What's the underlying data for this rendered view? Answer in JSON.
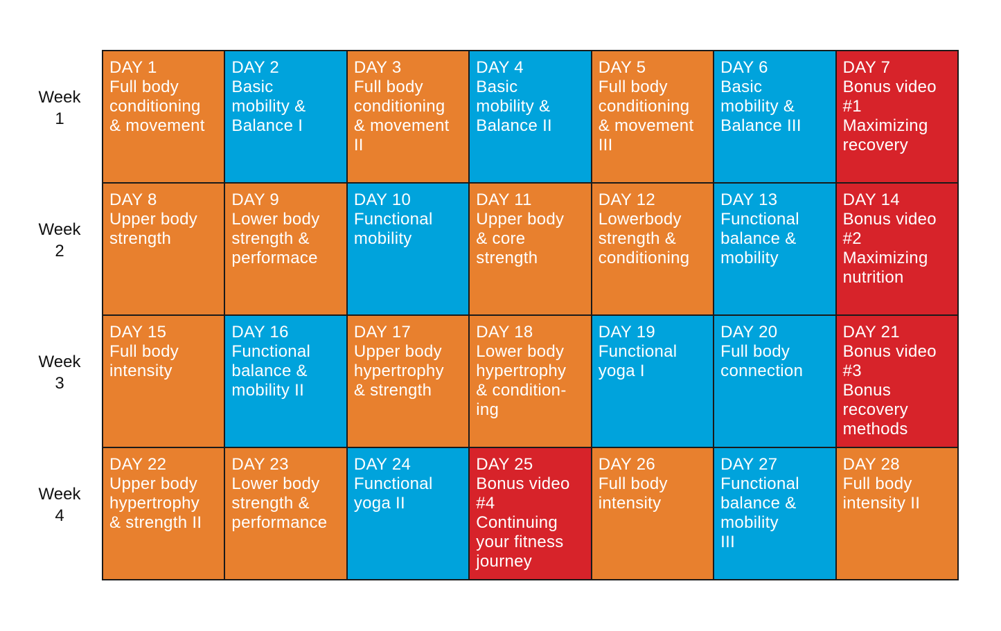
{
  "weeks": [
    {
      "label": [
        "Week",
        "1"
      ],
      "days": [
        {
          "day": "DAY 1",
          "lines": [
            "Full body",
            "conditioning",
            "& movement"
          ],
          "color": "#e8802e"
        },
        {
          "day": "DAY 2",
          "lines": [
            "Basic",
            "mobility &",
            "Balance I"
          ],
          "color": "#00a3dc"
        },
        {
          "day": "DAY 3",
          "lines": [
            "Full body",
            "conditioning",
            "& movement",
            "II"
          ],
          "color": "#e8802e"
        },
        {
          "day": "DAY 4",
          "lines": [
            "Basic",
            "mobility &",
            "Balance II"
          ],
          "color": "#00a3dc"
        },
        {
          "day": "DAY 5",
          "lines": [
            "Full body",
            "conditioning",
            "& movement",
            "III"
          ],
          "color": "#e8802e"
        },
        {
          "day": "DAY 6",
          "lines": [
            "Basic",
            "mobility &",
            "Balance III"
          ],
          "color": "#00a3dc"
        },
        {
          "day": "DAY 7",
          "lines": [
            "Bonus video",
            "#1",
            "Maximizing",
            "recovery"
          ],
          "color": "#d7232a"
        }
      ]
    },
    {
      "label": [
        "Week",
        "2"
      ],
      "days": [
        {
          "day": "DAY 8",
          "lines": [
            "Upper body",
            "strength"
          ],
          "color": "#e8802e"
        },
        {
          "day": "DAY 9",
          "lines": [
            "Lower body",
            "strength &",
            "performace"
          ],
          "color": "#e8802e"
        },
        {
          "day": "DAY 10",
          "lines": [
            "Functional",
            "mobility"
          ],
          "color": "#00a3dc"
        },
        {
          "day": "DAY 11",
          "lines": [
            "Upper body",
            "& core",
            "strength"
          ],
          "color": "#e8802e"
        },
        {
          "day": "DAY 12",
          "lines": [
            "Lowerbody",
            "strength &",
            "conditioning"
          ],
          "color": "#e8802e"
        },
        {
          "day": "DAY 13",
          "lines": [
            "Functional",
            "balance &",
            "mobility"
          ],
          "color": "#00a3dc"
        },
        {
          "day": "DAY 14",
          "lines": [
            "Bonus video",
            "#2",
            "Maximizing",
            "nutrition"
          ],
          "color": "#d7232a"
        }
      ]
    },
    {
      "label": [
        "Week",
        "3"
      ],
      "days": [
        {
          "day": "DAY 15",
          "lines": [
            "Full body",
            "intensity"
          ],
          "color": "#e8802e"
        },
        {
          "day": "DAY 16",
          "lines": [
            "Functional",
            "balance &",
            "mobility II"
          ],
          "color": "#00a3dc"
        },
        {
          "day": "DAY 17",
          "lines": [
            "Upper body",
            "hypertrophy",
            "& strength"
          ],
          "color": "#e8802e"
        },
        {
          "day": "DAY 18",
          "lines": [
            "Lower body",
            "hypertrophy",
            "& condition-",
            "ing"
          ],
          "color": "#e8802e"
        },
        {
          "day": "DAY 19",
          "lines": [
            "Functional",
            "yoga I"
          ],
          "color": "#00a3dc"
        },
        {
          "day": "DAY 20",
          "lines": [
            "Full body",
            "connection"
          ],
          "color": "#00a3dc"
        },
        {
          "day": "DAY 21",
          "lines": [
            "Bonus video",
            "#3",
            "Bonus",
            "recovery",
            "methods"
          ],
          "color": "#d7232a"
        }
      ]
    },
    {
      "label": [
        "Week",
        "4"
      ],
      "days": [
        {
          "day": "DAY 22",
          "lines": [
            "Upper body",
            "hypertrophy",
            "& strength II"
          ],
          "color": "#e8802e"
        },
        {
          "day": "DAY 23",
          "lines": [
            "Lower body",
            "strength &",
            "performance"
          ],
          "color": "#e8802e"
        },
        {
          "day": "DAY 24",
          "lines": [
            "Functional",
            "yoga II"
          ],
          "color": "#00a3dc"
        },
        {
          "day": "DAY 25",
          "lines": [
            "Bonus video",
            "#4",
            "Continuing",
            "your fitness",
            "journey"
          ],
          "color": "#d7232a"
        },
        {
          "day": "DAY 26",
          "lines": [
            "Full body",
            "intensity"
          ],
          "color": "#e8802e"
        },
        {
          "day": "DAY 27",
          "lines": [
            "Functional",
            "balance &",
            "mobility",
            "III"
          ],
          "color": "#00a3dc"
        },
        {
          "day": "DAY 28",
          "lines": [
            "Full body",
            "intensity II"
          ],
          "color": "#e8802e"
        }
      ]
    }
  ]
}
